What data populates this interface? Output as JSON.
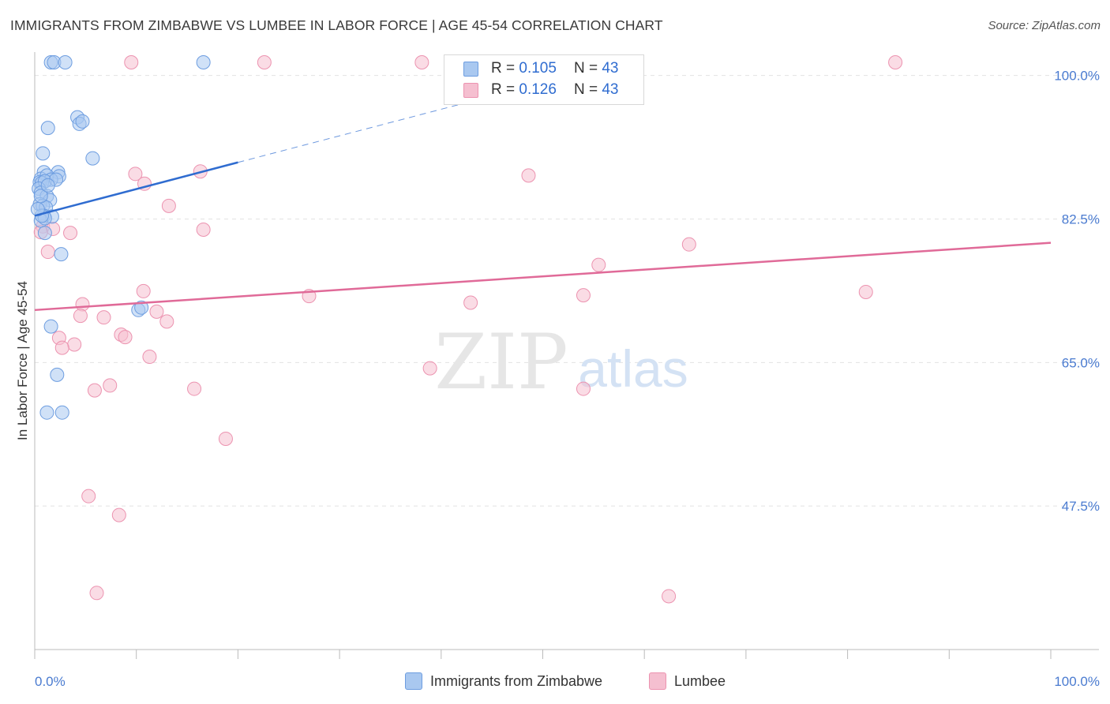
{
  "title": "IMMIGRANTS FROM ZIMBABWE VS LUMBEE IN LABOR FORCE | AGE 45-54 CORRELATION CHART",
  "source": "Source: ZipAtlas.com",
  "watermark": {
    "zip": "ZIP",
    "atlas": "atlas"
  },
  "legend": {
    "r_label": "R =",
    "n_label": "N =",
    "rows": [
      {
        "r": "0.105",
        "n": "43"
      },
      {
        "r": "0.126",
        "n": "43"
      }
    ]
  },
  "colors": {
    "blue_fill": "#a9c8f0",
    "blue_stroke": "#6d9de0",
    "blue_line": "#2f6cd0",
    "pink_fill": "#f5bfd0",
    "pink_stroke": "#ec93b0",
    "pink_line": "#e06a98",
    "tick_label": "#4a7bd0",
    "grid": "#e2e2e2"
  },
  "chart_data": {
    "type": "scatter",
    "title": "IMMIGRANTS FROM ZIMBABWE VS LUMBEE IN LABOR FORCE | AGE 45-54 CORRELATION CHART",
    "xlabel": "",
    "ylabel": "In Labor Force | Age 45-54",
    "xlim": [
      0,
      100
    ],
    "ylim": [
      30,
      101.6
    ],
    "x_tick_labels": [
      "0.0%",
      "100.0%"
    ],
    "y_ticks": [
      47.5,
      65.0,
      82.5,
      100.0
    ],
    "y_tick_labels": [
      "47.5%",
      "65.0%",
      "82.5%",
      "100.0%"
    ],
    "grid": true,
    "legend_position": "bottom",
    "series": [
      {
        "name": "Immigrants from Zimbabwe",
        "color": "blue",
        "r": 0.105,
        "n": 43,
        "trend": {
          "x": [
            0,
            20
          ],
          "y": [
            82.9,
            89.4
          ],
          "dashed_to": [
            45,
            97.5
          ]
        },
        "points": [
          [
            1.6,
            101.6
          ],
          [
            1.9,
            101.6
          ],
          [
            3.0,
            101.6
          ],
          [
            16.6,
            101.6
          ],
          [
            4.2,
            94.9
          ],
          [
            4.4,
            94.1
          ],
          [
            4.7,
            94.4
          ],
          [
            1.3,
            93.6
          ],
          [
            0.8,
            90.5
          ],
          [
            5.7,
            89.9
          ],
          [
            0.9,
            88.2
          ],
          [
            2.3,
            88.2
          ],
          [
            2.4,
            87.7
          ],
          [
            0.6,
            87.4
          ],
          [
            1.2,
            87.8
          ],
          [
            1.6,
            87.3
          ],
          [
            0.5,
            87.0
          ],
          [
            0.7,
            86.9
          ],
          [
            1.0,
            87.1
          ],
          [
            2.1,
            87.3
          ],
          [
            0.4,
            86.2
          ],
          [
            0.6,
            85.7
          ],
          [
            1.2,
            85.3
          ],
          [
            1.5,
            84.8
          ],
          [
            0.5,
            84.3
          ],
          [
            0.8,
            84.1
          ],
          [
            1.1,
            83.9
          ],
          [
            0.9,
            82.9
          ],
          [
            1.7,
            82.8
          ],
          [
            0.6,
            82.3
          ],
          [
            1.0,
            82.6
          ],
          [
            1.0,
            80.8
          ],
          [
            2.6,
            78.2
          ],
          [
            10.2,
            71.4
          ],
          [
            10.5,
            71.7
          ],
          [
            1.6,
            69.4
          ],
          [
            2.2,
            63.5
          ],
          [
            1.2,
            58.9
          ],
          [
            2.7,
            58.9
          ],
          [
            0.7,
            82.9
          ],
          [
            0.6,
            85.3
          ],
          [
            1.3,
            86.6
          ],
          [
            0.3,
            83.7
          ]
        ]
      },
      {
        "name": "Lumbee",
        "color": "pink",
        "r": 0.126,
        "n": 43,
        "trend": {
          "x": [
            0,
            100
          ],
          "y": [
            71.4,
            79.6
          ]
        },
        "points": [
          [
            9.5,
            101.6
          ],
          [
            22.6,
            101.6
          ],
          [
            38.1,
            101.6
          ],
          [
            84.7,
            101.6
          ],
          [
            16.3,
            88.3
          ],
          [
            9.9,
            88.0
          ],
          [
            10.8,
            86.8
          ],
          [
            48.6,
            87.8
          ],
          [
            13.2,
            84.1
          ],
          [
            16.6,
            81.2
          ],
          [
            0.8,
            81.6
          ],
          [
            1.8,
            81.3
          ],
          [
            3.5,
            80.8
          ],
          [
            1.3,
            78.5
          ],
          [
            64.4,
            79.4
          ],
          [
            55.5,
            76.9
          ],
          [
            10.7,
            73.7
          ],
          [
            27.0,
            73.1
          ],
          [
            42.9,
            72.3
          ],
          [
            54.0,
            73.2
          ],
          [
            81.8,
            73.6
          ],
          [
            4.7,
            72.1
          ],
          [
            6.8,
            70.5
          ],
          [
            4.5,
            70.7
          ],
          [
            12.0,
            71.2
          ],
          [
            13.0,
            70.0
          ],
          [
            8.5,
            68.4
          ],
          [
            8.9,
            68.1
          ],
          [
            2.4,
            68.0
          ],
          [
            3.9,
            67.2
          ],
          [
            2.7,
            66.8
          ],
          [
            11.3,
            65.7
          ],
          [
            38.9,
            64.3
          ],
          [
            7.4,
            62.2
          ],
          [
            5.9,
            61.6
          ],
          [
            15.7,
            61.8
          ],
          [
            54.0,
            61.8
          ],
          [
            18.8,
            55.7
          ],
          [
            5.3,
            48.7
          ],
          [
            8.3,
            46.4
          ],
          [
            6.1,
            36.9
          ],
          [
            62.4,
            36.5
          ],
          [
            0.6,
            80.9
          ]
        ]
      }
    ]
  },
  "bottom_legend": [
    "Immigrants from Zimbabwe",
    "Lumbee"
  ]
}
